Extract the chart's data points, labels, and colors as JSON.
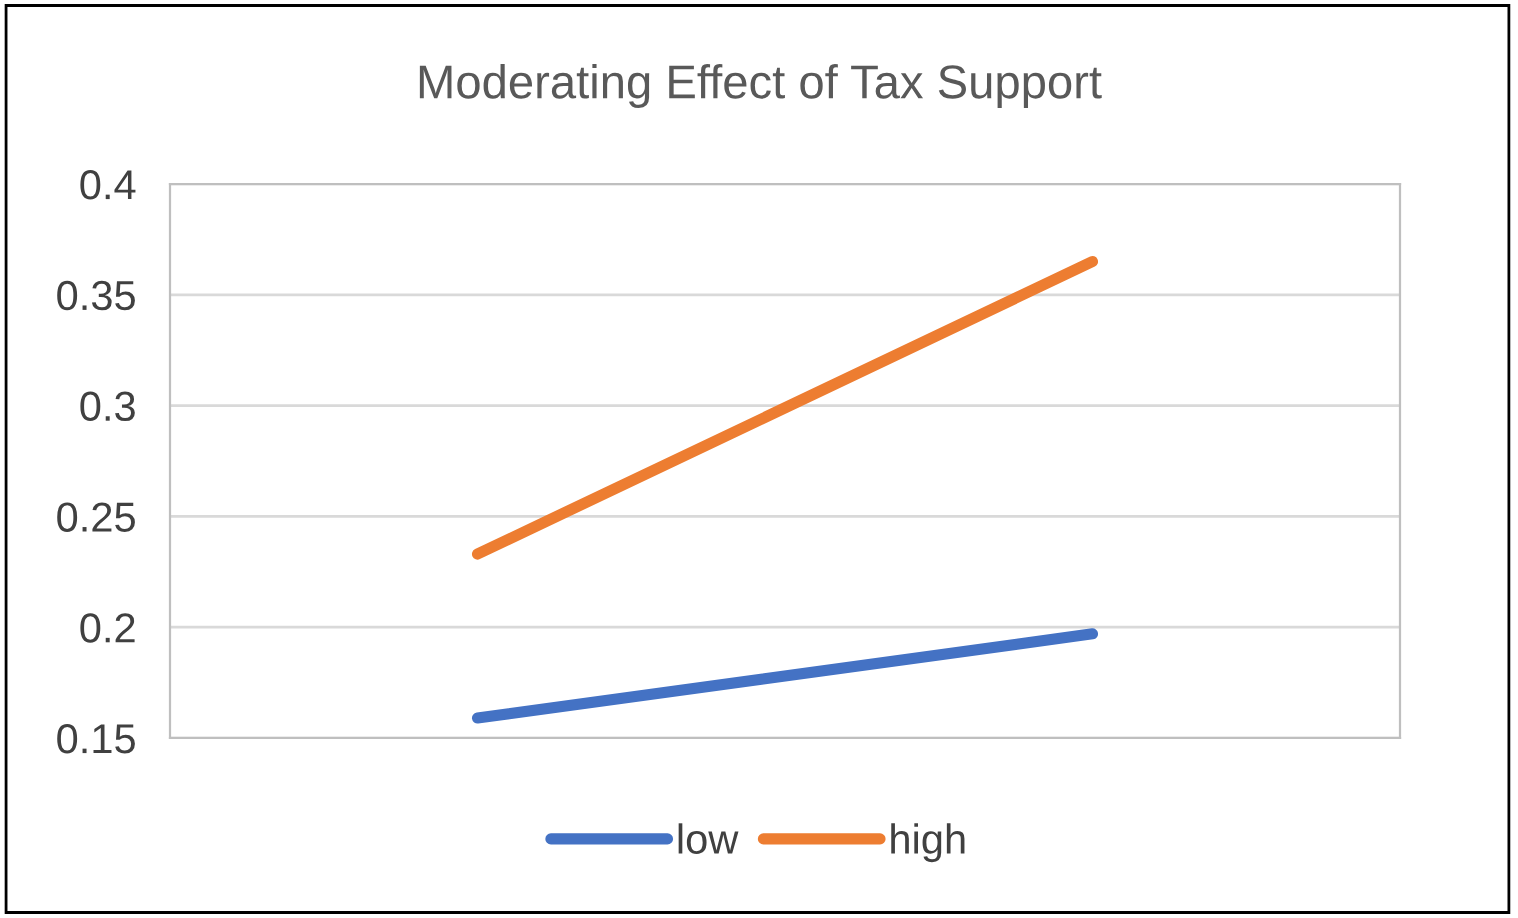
{
  "chart_data": {
    "type": "line",
    "title": "Moderating Effect of Tax Support",
    "categories": [
      null,
      null
    ],
    "series": [
      {
        "name": "low",
        "color": "#4472c4",
        "values": [
          0.159,
          0.197
        ]
      },
      {
        "name": "high",
        "color": "#ed7d31",
        "values": [
          0.233,
          0.365
        ]
      }
    ],
    "ylim": [
      0.15,
      0.4
    ],
    "yticks": [
      0.15,
      0.2,
      0.25,
      0.3,
      0.35,
      0.4
    ],
    "grid": "y",
    "legend": "bottom",
    "marker": "none",
    "line_style": "solid"
  }
}
